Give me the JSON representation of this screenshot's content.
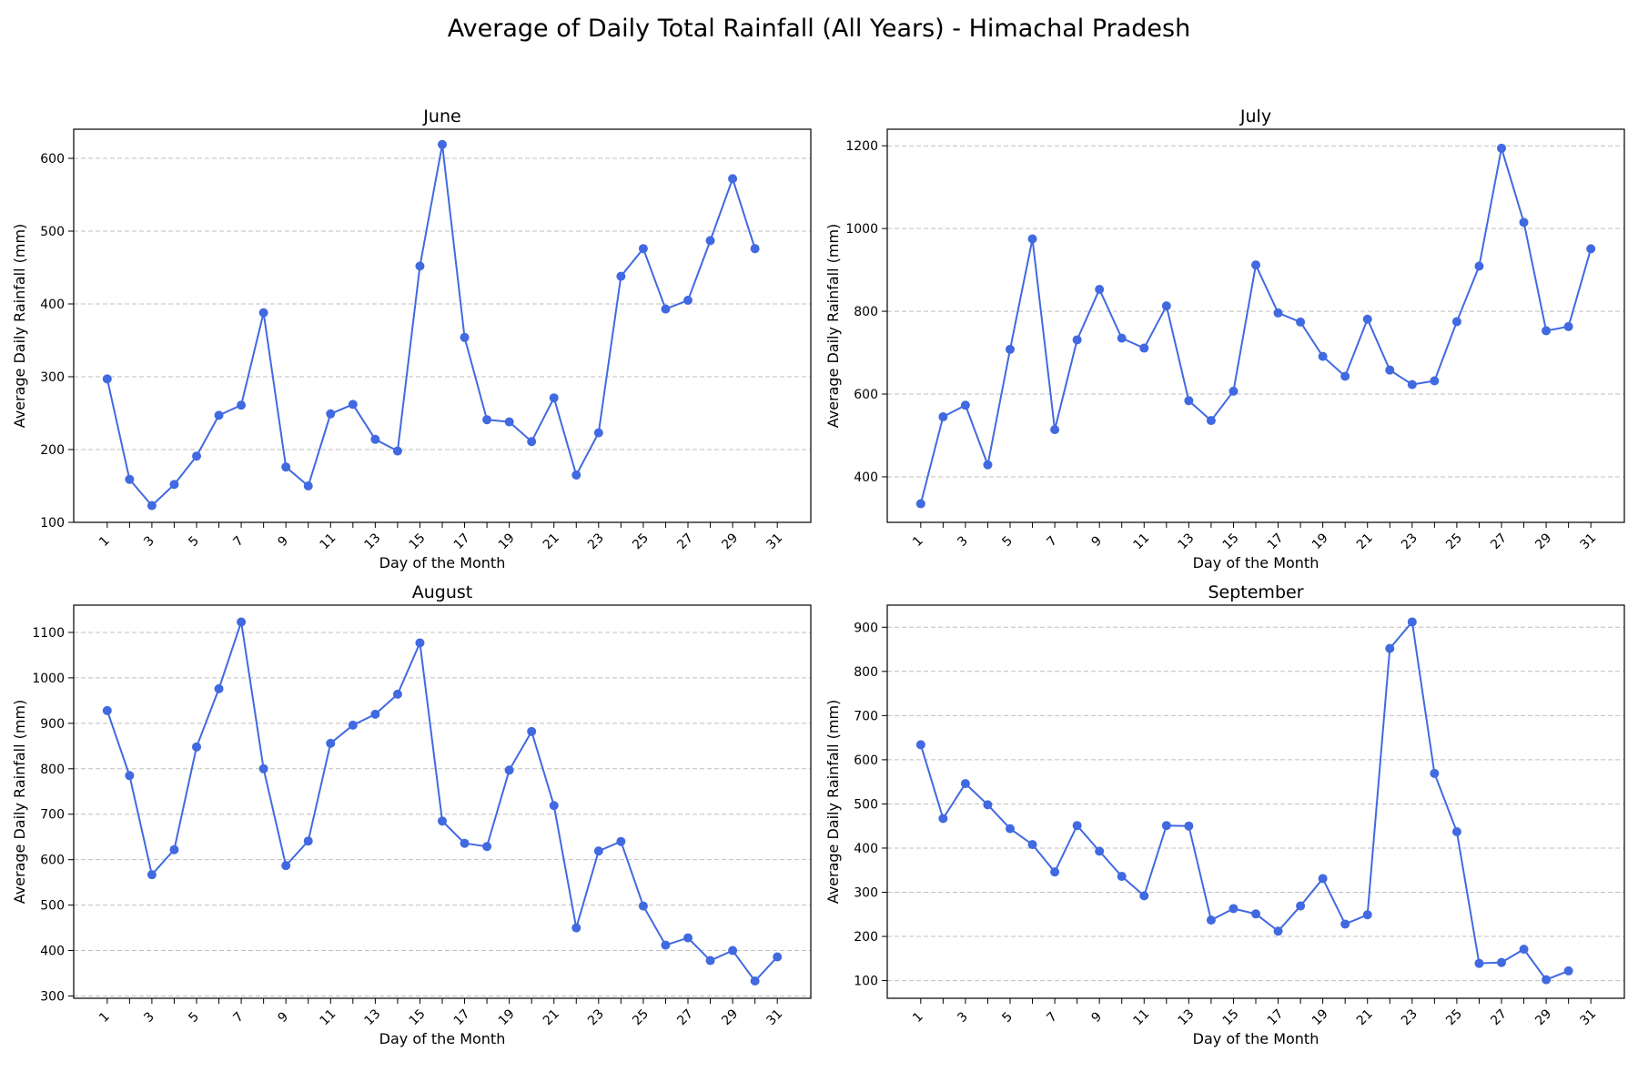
{
  "figure": {
    "title": "Average of Daily Total Rainfall (All Years) - Himachal Pradesh",
    "line_color": "#4169e1"
  },
  "chart_data": [
    {
      "type": "line",
      "title": "June",
      "xlabel": "Day of the Month",
      "ylabel": "Average Daily Rainfall (mm)",
      "x": [
        1,
        2,
        3,
        4,
        5,
        6,
        7,
        8,
        9,
        10,
        11,
        12,
        13,
        14,
        15,
        16,
        17,
        18,
        19,
        20,
        21,
        22,
        23,
        24,
        25,
        26,
        27,
        28,
        29,
        30
      ],
      "values": [
        297,
        159,
        123,
        152,
        191,
        247,
        261,
        388,
        176,
        150,
        249,
        262,
        214,
        198,
        452,
        619,
        354,
        241,
        238,
        211,
        271,
        165,
        223,
        438,
        476,
        393,
        405,
        487,
        572,
        476
      ],
      "xticks": [
        1,
        3,
        5,
        7,
        9,
        11,
        13,
        15,
        17,
        19,
        21,
        23,
        25,
        27,
        29,
        31
      ],
      "xlim": [
        -0.5,
        32.5
      ],
      "ylim": [
        100,
        640
      ],
      "yticks": [
        100,
        200,
        300,
        400,
        500,
        600
      ],
      "grid": "y"
    },
    {
      "type": "line",
      "title": "July",
      "xlabel": "Day of the Month",
      "ylabel": "Average Daily Rainfall (mm)",
      "x": [
        1,
        2,
        3,
        4,
        5,
        6,
        7,
        8,
        9,
        10,
        11,
        12,
        13,
        14,
        15,
        16,
        17,
        18,
        19,
        20,
        21,
        22,
        23,
        24,
        25,
        26,
        27,
        28,
        29,
        30,
        31
      ],
      "values": [
        335,
        545,
        573,
        429,
        708,
        975,
        514,
        731,
        853,
        735,
        711,
        813,
        584,
        536,
        607,
        912,
        796,
        774,
        691,
        643,
        781,
        658,
        623,
        632,
        775,
        909,
        1194,
        1015,
        753,
        763,
        951
      ],
      "xticks": [
        1,
        3,
        5,
        7,
        9,
        11,
        13,
        15,
        17,
        19,
        21,
        23,
        25,
        27,
        29,
        31
      ],
      "xlim": [
        -0.5,
        32.5
      ],
      "ylim": [
        290,
        1240
      ],
      "yticks": [
        400,
        600,
        800,
        1000,
        1200
      ],
      "grid": "y"
    },
    {
      "type": "line",
      "title": "August",
      "xlabel": "Day of the Month",
      "ylabel": "Average Daily Rainfall (mm)",
      "x": [
        1,
        2,
        3,
        4,
        5,
        6,
        7,
        8,
        9,
        10,
        11,
        12,
        13,
        14,
        15,
        16,
        17,
        18,
        19,
        20,
        21,
        22,
        23,
        24,
        25,
        26,
        27,
        28,
        29,
        30,
        31
      ],
      "values": [
        928,
        785,
        567,
        622,
        848,
        976,
        1123,
        800,
        587,
        641,
        856,
        896,
        920,
        964,
        1077,
        685,
        636,
        629,
        797,
        882,
        719,
        450,
        619,
        640,
        498,
        412,
        428,
        378,
        400,
        333,
        386
      ],
      "xticks": [
        1,
        3,
        5,
        7,
        9,
        11,
        13,
        15,
        17,
        19,
        21,
        23,
        25,
        27,
        29,
        31
      ],
      "xlim": [
        -0.5,
        32.5
      ],
      "ylim": [
        295,
        1160
      ],
      "yticks": [
        300,
        400,
        500,
        600,
        700,
        800,
        900,
        1000,
        1100
      ],
      "grid": "y"
    },
    {
      "type": "line",
      "title": "September",
      "xlabel": "Day of the Month",
      "ylabel": "Average Daily Rainfall (mm)",
      "x": [
        1,
        2,
        3,
        4,
        5,
        6,
        7,
        8,
        9,
        10,
        11,
        12,
        13,
        14,
        15,
        16,
        17,
        18,
        19,
        20,
        21,
        22,
        23,
        24,
        25,
        26,
        27,
        28,
        29,
        30
      ],
      "values": [
        634,
        467,
        546,
        498,
        444,
        408,
        346,
        451,
        393,
        336,
        292,
        451,
        450,
        237,
        263,
        251,
        212,
        269,
        331,
        228,
        249,
        852,
        912,
        569,
        437,
        139,
        141,
        171,
        102,
        122
      ],
      "xticks": [
        1,
        3,
        5,
        7,
        9,
        11,
        13,
        15,
        17,
        19,
        21,
        23,
        25,
        27,
        29,
        31
      ],
      "xlim": [
        -0.5,
        32.5
      ],
      "ylim": [
        60,
        950
      ],
      "yticks": [
        100,
        200,
        300,
        400,
        500,
        600,
        700,
        800,
        900
      ],
      "grid": "y"
    }
  ]
}
